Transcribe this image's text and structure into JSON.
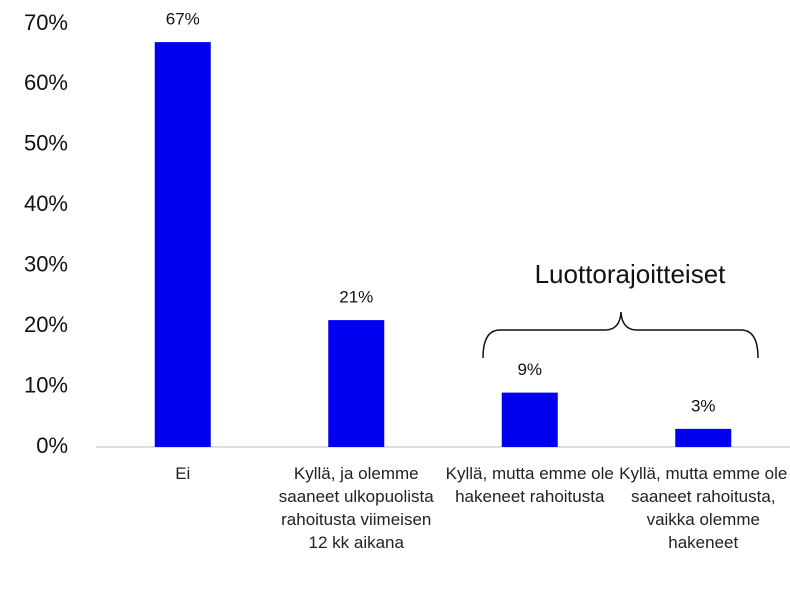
{
  "chart_data": {
    "type": "bar",
    "annotation": "Luottorajoitteiset",
    "categories": [
      "Ei",
      "Kyllä, ja olemme saaneet ulkopuolista rahoitusta viimeisen 12 kk aikana",
      "Kyllä, mutta emme ole hakeneet rahoitusta",
      "Kyllä, mutta emme ole saaneet rahoitusta, vaikka olemme hakeneet"
    ],
    "values": [
      67,
      21,
      9,
      3
    ],
    "value_labels": [
      "67%",
      "21%",
      "9%",
      "3%"
    ],
    "color": "#0000ee",
    "ylim": [
      0,
      70
    ],
    "yticks": [
      {
        "value": 0,
        "label": "0%"
      },
      {
        "value": 10,
        "label": "10%"
      },
      {
        "value": 20,
        "label": "20%"
      },
      {
        "value": 30,
        "label": "30%"
      },
      {
        "value": 40,
        "label": "40%"
      },
      {
        "value": 50,
        "label": "50%"
      },
      {
        "value": 60,
        "label": "60%"
      },
      {
        "value": 70,
        "label": "70%"
      }
    ],
    "grid": false
  }
}
